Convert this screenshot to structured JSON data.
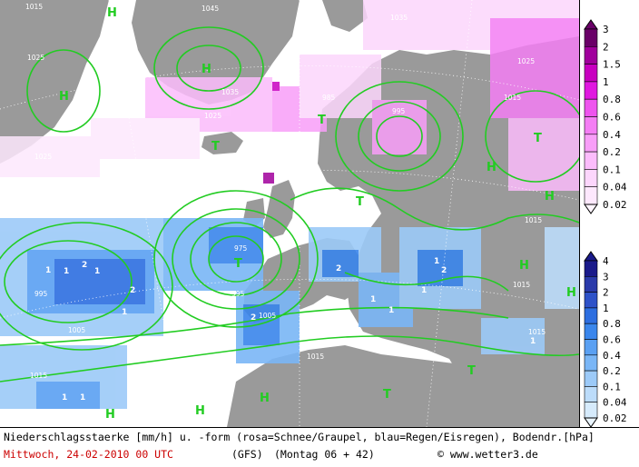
{
  "legend_top": {
    "labels": [
      "3",
      "2",
      "1.5",
      "1",
      "0.8",
      "0.6",
      "0.4",
      "0.2",
      "0.1",
      "0.04",
      "0.02"
    ],
    "colors": [
      "#6a0068",
      "#a0009c",
      "#c800c0",
      "#e018e0",
      "#ee55ee",
      "#f47ef4",
      "#f89ef8",
      "#fbbcfb",
      "#fcd6fc",
      "#fde8fd",
      "#fff6ff"
    ]
  },
  "legend_bottom": {
    "labels": [
      "4",
      "3",
      "2",
      "1",
      "0.8",
      "0.6",
      "0.4",
      "0.2",
      "0.1",
      "0.04",
      "0.02"
    ],
    "colors": [
      "#1a1a8a",
      "#2a3aaa",
      "#2e52c8",
      "#2d6ee0",
      "#3a86ec",
      "#5aa0f2",
      "#7ab6f6",
      "#9ccaf8",
      "#bcdcfa",
      "#d6ebfc",
      "#eaf5fe"
    ]
  },
  "isobars": [
    "1015",
    "1015",
    "1015",
    "1015",
    "1015",
    "1015",
    "1015",
    "1015",
    "1015",
    "1025",
    "1025",
    "1025",
    "1035",
    "1035",
    "1045",
    "1005",
    "1005",
    "1005",
    "1005",
    "1005",
    "995",
    "995",
    "995",
    "975",
    "985",
    "985",
    "1005"
  ],
  "pressure_centers": {
    "H": [
      "H",
      "H",
      "H",
      "H",
      "H",
      "H",
      "H",
      "H",
      "H",
      "H"
    ],
    "T": [
      "T",
      "T",
      "T",
      "T",
      "T",
      "T"
    ]
  },
  "precip_labels": [
    "1",
    "1",
    "1",
    "2",
    "2",
    "1",
    "2",
    "1",
    "1",
    "2",
    "1",
    "1",
    "1",
    "1",
    "1",
    "1",
    "1",
    "1",
    "1"
  ],
  "footer": {
    "line1": "Niederschlagsstaerke [mm/h] u. -form (rosa=Schnee/Graupel, blau=Regen/Eisregen), Bodendr.[hPa]",
    "date": "Mittwoch, 24-02-2010  00 UTC",
    "model": "(GFS)",
    "run": "(Montag 06 + 42)",
    "copyright": "© www.wetter3.de"
  },
  "colors": {
    "land": "#9a9a9a",
    "isobar": "#22cc22",
    "sea": "#ffffff"
  }
}
